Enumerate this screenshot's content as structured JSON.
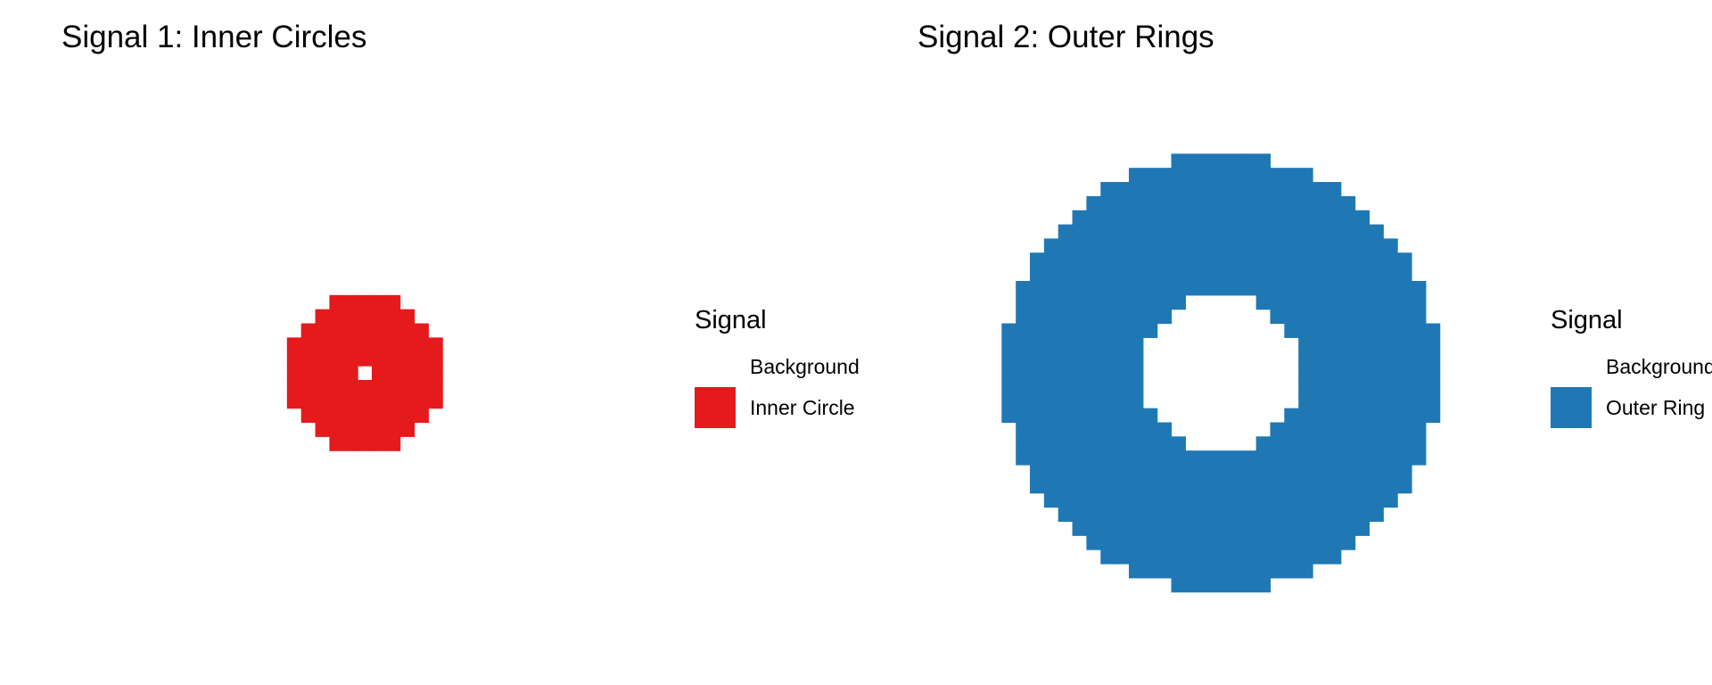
{
  "chart_data": [
    {
      "type": "heatmap",
      "title": "Signal 1: Inner Circles",
      "legend": {
        "title": "Signal",
        "placement": "right",
        "entries": [
          {
            "label": "Background",
            "color": "#ffffff"
          },
          {
            "label": "Inner Circle",
            "color": "#e41a1c"
          }
        ]
      },
      "grid": false,
      "axes": false,
      "grid_size": [
        40,
        40
      ],
      "center": [
        20,
        20
      ],
      "shape": "disk",
      "inner_radius": 0,
      "outer_radius": 5.5,
      "fill_label": "Inner Circle"
    },
    {
      "type": "heatmap",
      "title": "Signal 2: Outer Rings",
      "legend": {
        "title": "Signal",
        "placement": "right",
        "entries": [
          {
            "label": "Background",
            "color": "#ffffff"
          },
          {
            "label": "Outer Ring",
            "color": "#1f78b4"
          }
        ]
      },
      "grid": false,
      "axes": false,
      "grid_size": [
        40,
        40
      ],
      "center": [
        20,
        20
      ],
      "shape": "ring",
      "inner_radius": 5.5,
      "outer_radius": 15.5,
      "fill_label": "Outer Ring"
    }
  ]
}
